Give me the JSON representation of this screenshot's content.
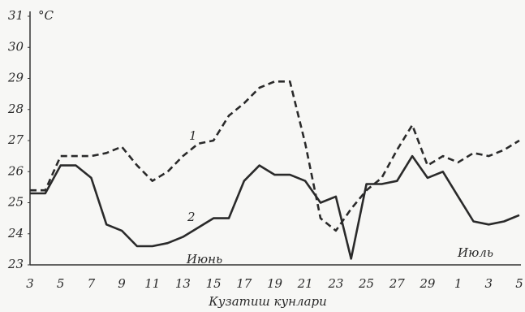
{
  "chart_data": {
    "type": "line",
    "y_label": "°C",
    "x_label": "Кузатиш кунлари",
    "categories": [
      "3",
      null,
      "5",
      null,
      "7",
      null,
      "9",
      null,
      "11",
      null,
      "13",
      null,
      "15",
      null,
      "17",
      null,
      "19",
      null,
      "21",
      null,
      "23",
      null,
      "25",
      null,
      "27",
      null,
      "29",
      null,
      "1",
      null,
      "3",
      null,
      "5"
    ],
    "series": [
      {
        "name": "1",
        "color": "#2a2a2a",
        "style": "dashed",
        "values": [
          25.4,
          25.4,
          26.5,
          26.5,
          26.5,
          26.6,
          26.8,
          26.2,
          25.7,
          26.0,
          26.5,
          26.9,
          27.0,
          27.8,
          28.2,
          28.7,
          28.9,
          28.9,
          26.9,
          24.5,
          24.1,
          24.8,
          25.4,
          25.8,
          26.7,
          27.5,
          26.2,
          26.5,
          26.3,
          26.6,
          26.5,
          26.7,
          27.0
        ]
      },
      {
        "name": "2",
        "color": "#2a2a2a",
        "style": "solid",
        "values": [
          25.3,
          25.3,
          26.2,
          26.2,
          25.8,
          24.3,
          24.1,
          23.6,
          23.6,
          23.7,
          23.9,
          24.2,
          24.5,
          24.5,
          25.7,
          26.2,
          25.9,
          25.9,
          25.7,
          25.0,
          25.2,
          23.2,
          25.6,
          25.6,
          25.7,
          26.5,
          25.8,
          26.0,
          25.2,
          24.4,
          24.3,
          24.4,
          24.6
        ]
      }
    ],
    "annotations": [
      "Июнь",
      "Июль"
    ],
    "ylim": [
      23,
      31
    ],
    "yticks": [
      23,
      24,
      25,
      26,
      27,
      28,
      29,
      30,
      31
    ]
  }
}
